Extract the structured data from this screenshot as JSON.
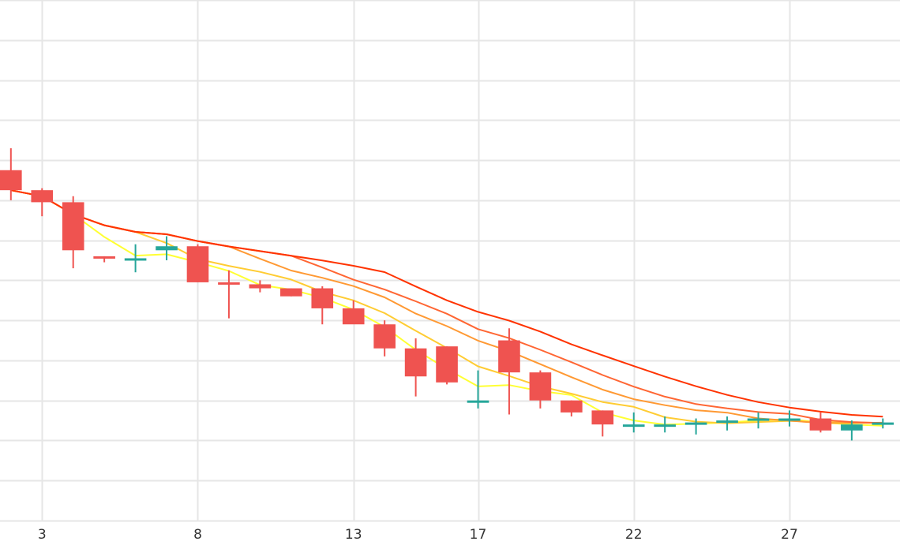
{
  "colors": {
    "up": "#26a69a",
    "down": "#ef5350",
    "grid": "#e6e6e6",
    "background": "#ffffff",
    "ma_colors": [
      "#ffff33",
      "#ffcc33",
      "#ff9933",
      "#ff6633",
      "#ff3300"
    ]
  },
  "chart_data": {
    "type": "candlestick",
    "title": "",
    "xlabel": "",
    "ylabel": "",
    "xlim": [
      1.65,
      30.55
    ],
    "ylim": [
      0,
      13
    ],
    "x_tick_labels": [
      "3",
      "8",
      "13",
      "17",
      "22",
      "27"
    ],
    "x_tick_positions": [
      3,
      8,
      13,
      17,
      22,
      27
    ],
    "grid": true,
    "candles": [
      {
        "x": 2,
        "open": 8.75,
        "high": 9.3,
        "low": 8.0,
        "close": 8.25
      },
      {
        "x": 3,
        "open": 8.25,
        "high": 8.3,
        "low": 7.6,
        "close": 7.95
      },
      {
        "x": 4,
        "open": 7.95,
        "high": 8.1,
        "low": 6.3,
        "close": 6.75
      },
      {
        "x": 5,
        "open": 6.6,
        "high": 6.6,
        "low": 6.45,
        "close": 6.55
      },
      {
        "x": 6,
        "open": 6.55,
        "high": 6.9,
        "low": 6.2,
        "close": 6.55
      },
      {
        "x": 7,
        "open": 6.75,
        "high": 7.1,
        "low": 6.5,
        "close": 6.85
      },
      {
        "x": 8,
        "open": 6.85,
        "high": 6.9,
        "low": 5.95,
        "close": 5.95
      },
      {
        "x": 9,
        "open": 5.95,
        "high": 6.25,
        "low": 5.05,
        "close": 5.9
      },
      {
        "x": 10,
        "open": 5.9,
        "high": 6.0,
        "low": 5.7,
        "close": 5.8
      },
      {
        "x": 11,
        "open": 5.8,
        "high": 5.8,
        "low": 5.6,
        "close": 5.6
      },
      {
        "x": 12,
        "open": 5.8,
        "high": 5.85,
        "low": 4.9,
        "close": 5.3
      },
      {
        "x": 13,
        "open": 5.3,
        "high": 5.5,
        "low": 4.95,
        "close": 4.9
      },
      {
        "x": 14,
        "open": 4.9,
        "high": 5.0,
        "low": 4.1,
        "close": 4.3
      },
      {
        "x": 15,
        "open": 4.3,
        "high": 4.55,
        "low": 3.1,
        "close": 3.6
      },
      {
        "x": 16,
        "open": 4.35,
        "high": 4.35,
        "low": 3.4,
        "close": 3.45
      },
      {
        "x": 17,
        "open": 3.0,
        "high": 3.75,
        "low": 2.8,
        "close": 3.0
      },
      {
        "x": 18,
        "open": 4.5,
        "high": 4.8,
        "low": 2.65,
        "close": 3.7
      },
      {
        "x": 19,
        "open": 3.7,
        "high": 3.75,
        "low": 2.8,
        "close": 3.0
      },
      {
        "x": 20,
        "open": 3.0,
        "high": 3.0,
        "low": 2.6,
        "close": 2.7
      },
      {
        "x": 21,
        "open": 2.75,
        "high": 2.75,
        "low": 2.1,
        "close": 2.4
      },
      {
        "x": 22,
        "open": 2.4,
        "high": 2.7,
        "low": 2.2,
        "close": 2.4
      },
      {
        "x": 23,
        "open": 2.4,
        "high": 2.6,
        "low": 2.2,
        "close": 2.4
      },
      {
        "x": 24,
        "open": 2.4,
        "high": 2.55,
        "low": 2.15,
        "close": 2.45
      },
      {
        "x": 25,
        "open": 2.45,
        "high": 2.6,
        "low": 2.25,
        "close": 2.5
      },
      {
        "x": 26,
        "open": 2.5,
        "high": 2.7,
        "low": 2.3,
        "close": 2.55
      },
      {
        "x": 27,
        "open": 2.55,
        "high": 2.75,
        "low": 2.35,
        "close": 2.55
      },
      {
        "x": 28,
        "open": 2.55,
        "high": 2.7,
        "low": 2.2,
        "close": 2.25
      },
      {
        "x": 29,
        "open": 2.25,
        "high": 2.5,
        "low": 2.0,
        "close": 2.4
      },
      {
        "x": 30,
        "open": 2.4,
        "high": 2.55,
        "low": 2.3,
        "close": 2.45
      }
    ]
  }
}
